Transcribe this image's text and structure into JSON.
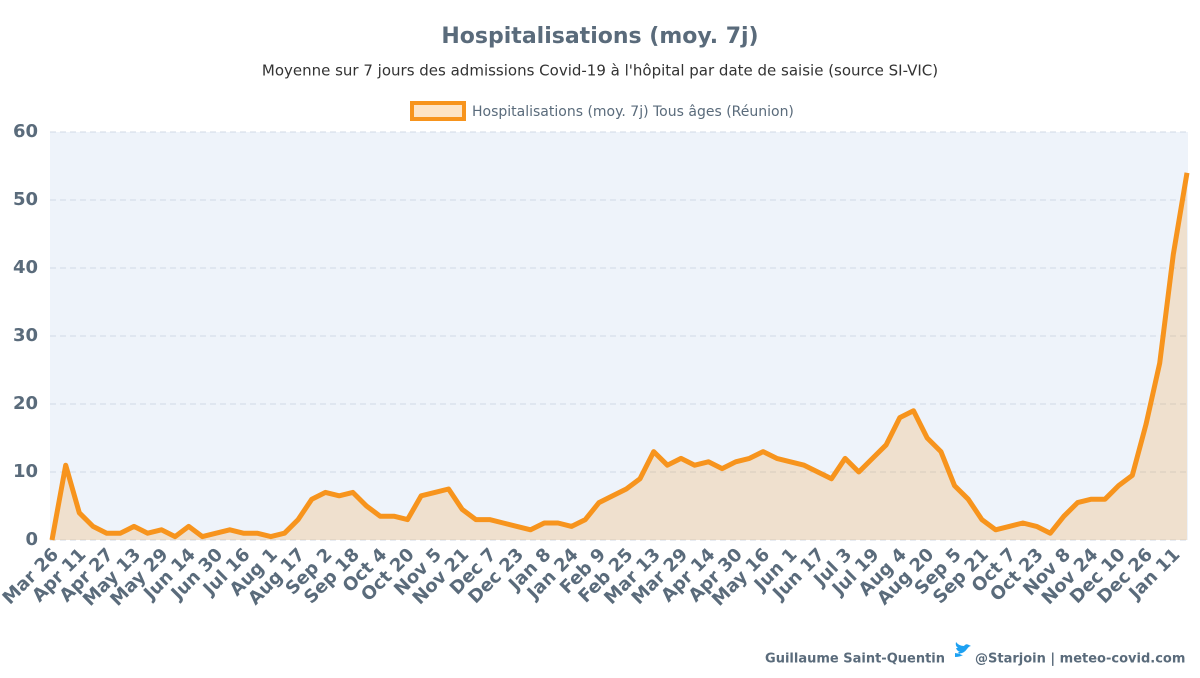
{
  "chart_data": {
    "type": "area-line",
    "title": "Hospitalisations (moy. 7j)",
    "subtitle": "Moyenne sur 7 jours des admissions Covid-19 à l'hôpital par date de saisie (source SI-VIC)",
    "credit": [
      "Guillaume Saint-Quentin",
      "@Starjoin | meteo-covid.com"
    ],
    "categories": [
      "Mar 26",
      null,
      "Apr 11",
      null,
      "Apr 27",
      null,
      "May 13",
      null,
      "May 29",
      null,
      "Jun 14",
      null,
      "Jun 30",
      null,
      "Jul 16",
      null,
      "Aug 1",
      null,
      "Aug 17",
      null,
      "Sep 2",
      null,
      "Sep 18",
      null,
      "Oct 4",
      null,
      "Oct 20",
      null,
      "Nov 5",
      null,
      "Nov 21",
      null,
      "Dec 7",
      null,
      "Dec 23",
      null,
      "Jan 8",
      null,
      "Jan 24",
      null,
      "Feb 9",
      null,
      "Feb 25",
      null,
      "Mar 13",
      null,
      "Mar 29",
      null,
      "Apr 14",
      null,
      "Apr 30",
      null,
      "May 16",
      null,
      "Jun 1",
      null,
      "Jun 17",
      null,
      "Jul 3",
      null,
      "Jul 19",
      null,
      "Aug 4",
      null,
      "Aug 20",
      null,
      "Sep 5",
      null,
      "Sep 21",
      null,
      "Oct 7",
      null,
      "Oct 23",
      null,
      "Nov 8",
      null,
      "Nov 24",
      null,
      "Dec 10",
      null,
      "Dec 26",
      null,
      "Jan 11",
      null
    ],
    "series": [
      {
        "name": "Hospitalisations (moy. 7j) Tous âges (Réunion)",
        "color": "#f7941d",
        "values": [
          0,
          11,
          4,
          2,
          1,
          1,
          2,
          1,
          1.5,
          0.5,
          2,
          0.5,
          1,
          1.5,
          1,
          1,
          0.5,
          1,
          3,
          6,
          7,
          6.5,
          7,
          5,
          3.5,
          3.5,
          3,
          6.5,
          7,
          7.5,
          4.5,
          3,
          3,
          2.5,
          2,
          1.5,
          2.5,
          2.5,
          2,
          3,
          5.5,
          6.5,
          7.5,
          9,
          13,
          11,
          12,
          11,
          11.5,
          10.5,
          11.5,
          12,
          13,
          12,
          11.5,
          11,
          10,
          9,
          12,
          10,
          12,
          14,
          18,
          19,
          15,
          13,
          8,
          6,
          3,
          1.5,
          2,
          2.5,
          2,
          1,
          3.5,
          5.5,
          6,
          6,
          8,
          9.5,
          17,
          26,
          42,
          54
        ]
      }
    ],
    "ylim": [
      0,
      60
    ],
    "yticks": [
      0,
      10,
      20,
      30,
      40,
      50,
      60
    ],
    "grid": true
  }
}
